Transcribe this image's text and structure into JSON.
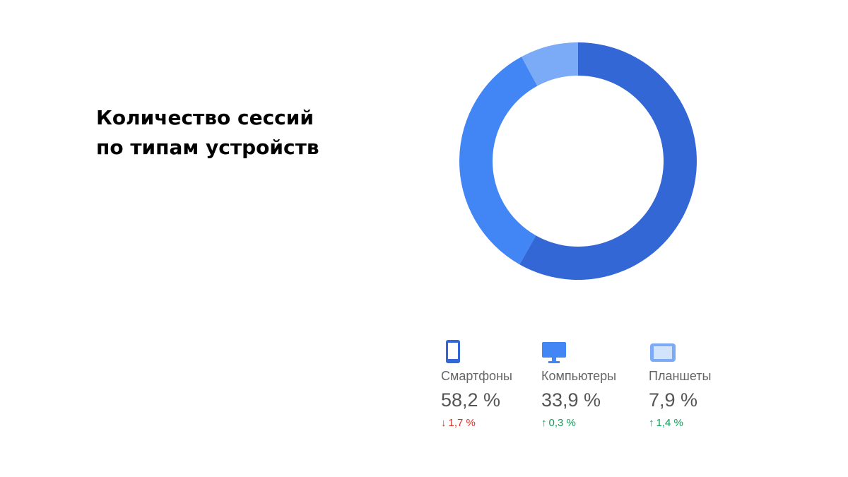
{
  "title_lines": [
    "Количество сессий",
    "по типам устройств"
  ],
  "colors": {
    "smartphones": "#3367d6",
    "computers": "#4285f4",
    "tablets": "#7baaf7",
    "down": "#d93025",
    "up": "#0f9d58"
  },
  "chart_data": {
    "type": "pie",
    "title": "Количество сессий по типам устройств",
    "donut": true,
    "series": [
      {
        "name": "Смартфоны",
        "value": 58.2,
        "value_label": "58,2 %",
        "change": -1.7,
        "change_label": "1,7 %",
        "icon": "smartphone-icon",
        "color": "#3367d6"
      },
      {
        "name": "Компьютеры",
        "value": 33.9,
        "value_label": "33,9 %",
        "change": 0.3,
        "change_label": "0,3 %",
        "icon": "desktop-icon",
        "color": "#4285f4"
      },
      {
        "name": "Планшеты",
        "value": 7.9,
        "value_label": "7,9 %",
        "change": 1.4,
        "change_label": "1,4 %",
        "icon": "tablet-icon",
        "color": "#7baaf7"
      }
    ]
  }
}
